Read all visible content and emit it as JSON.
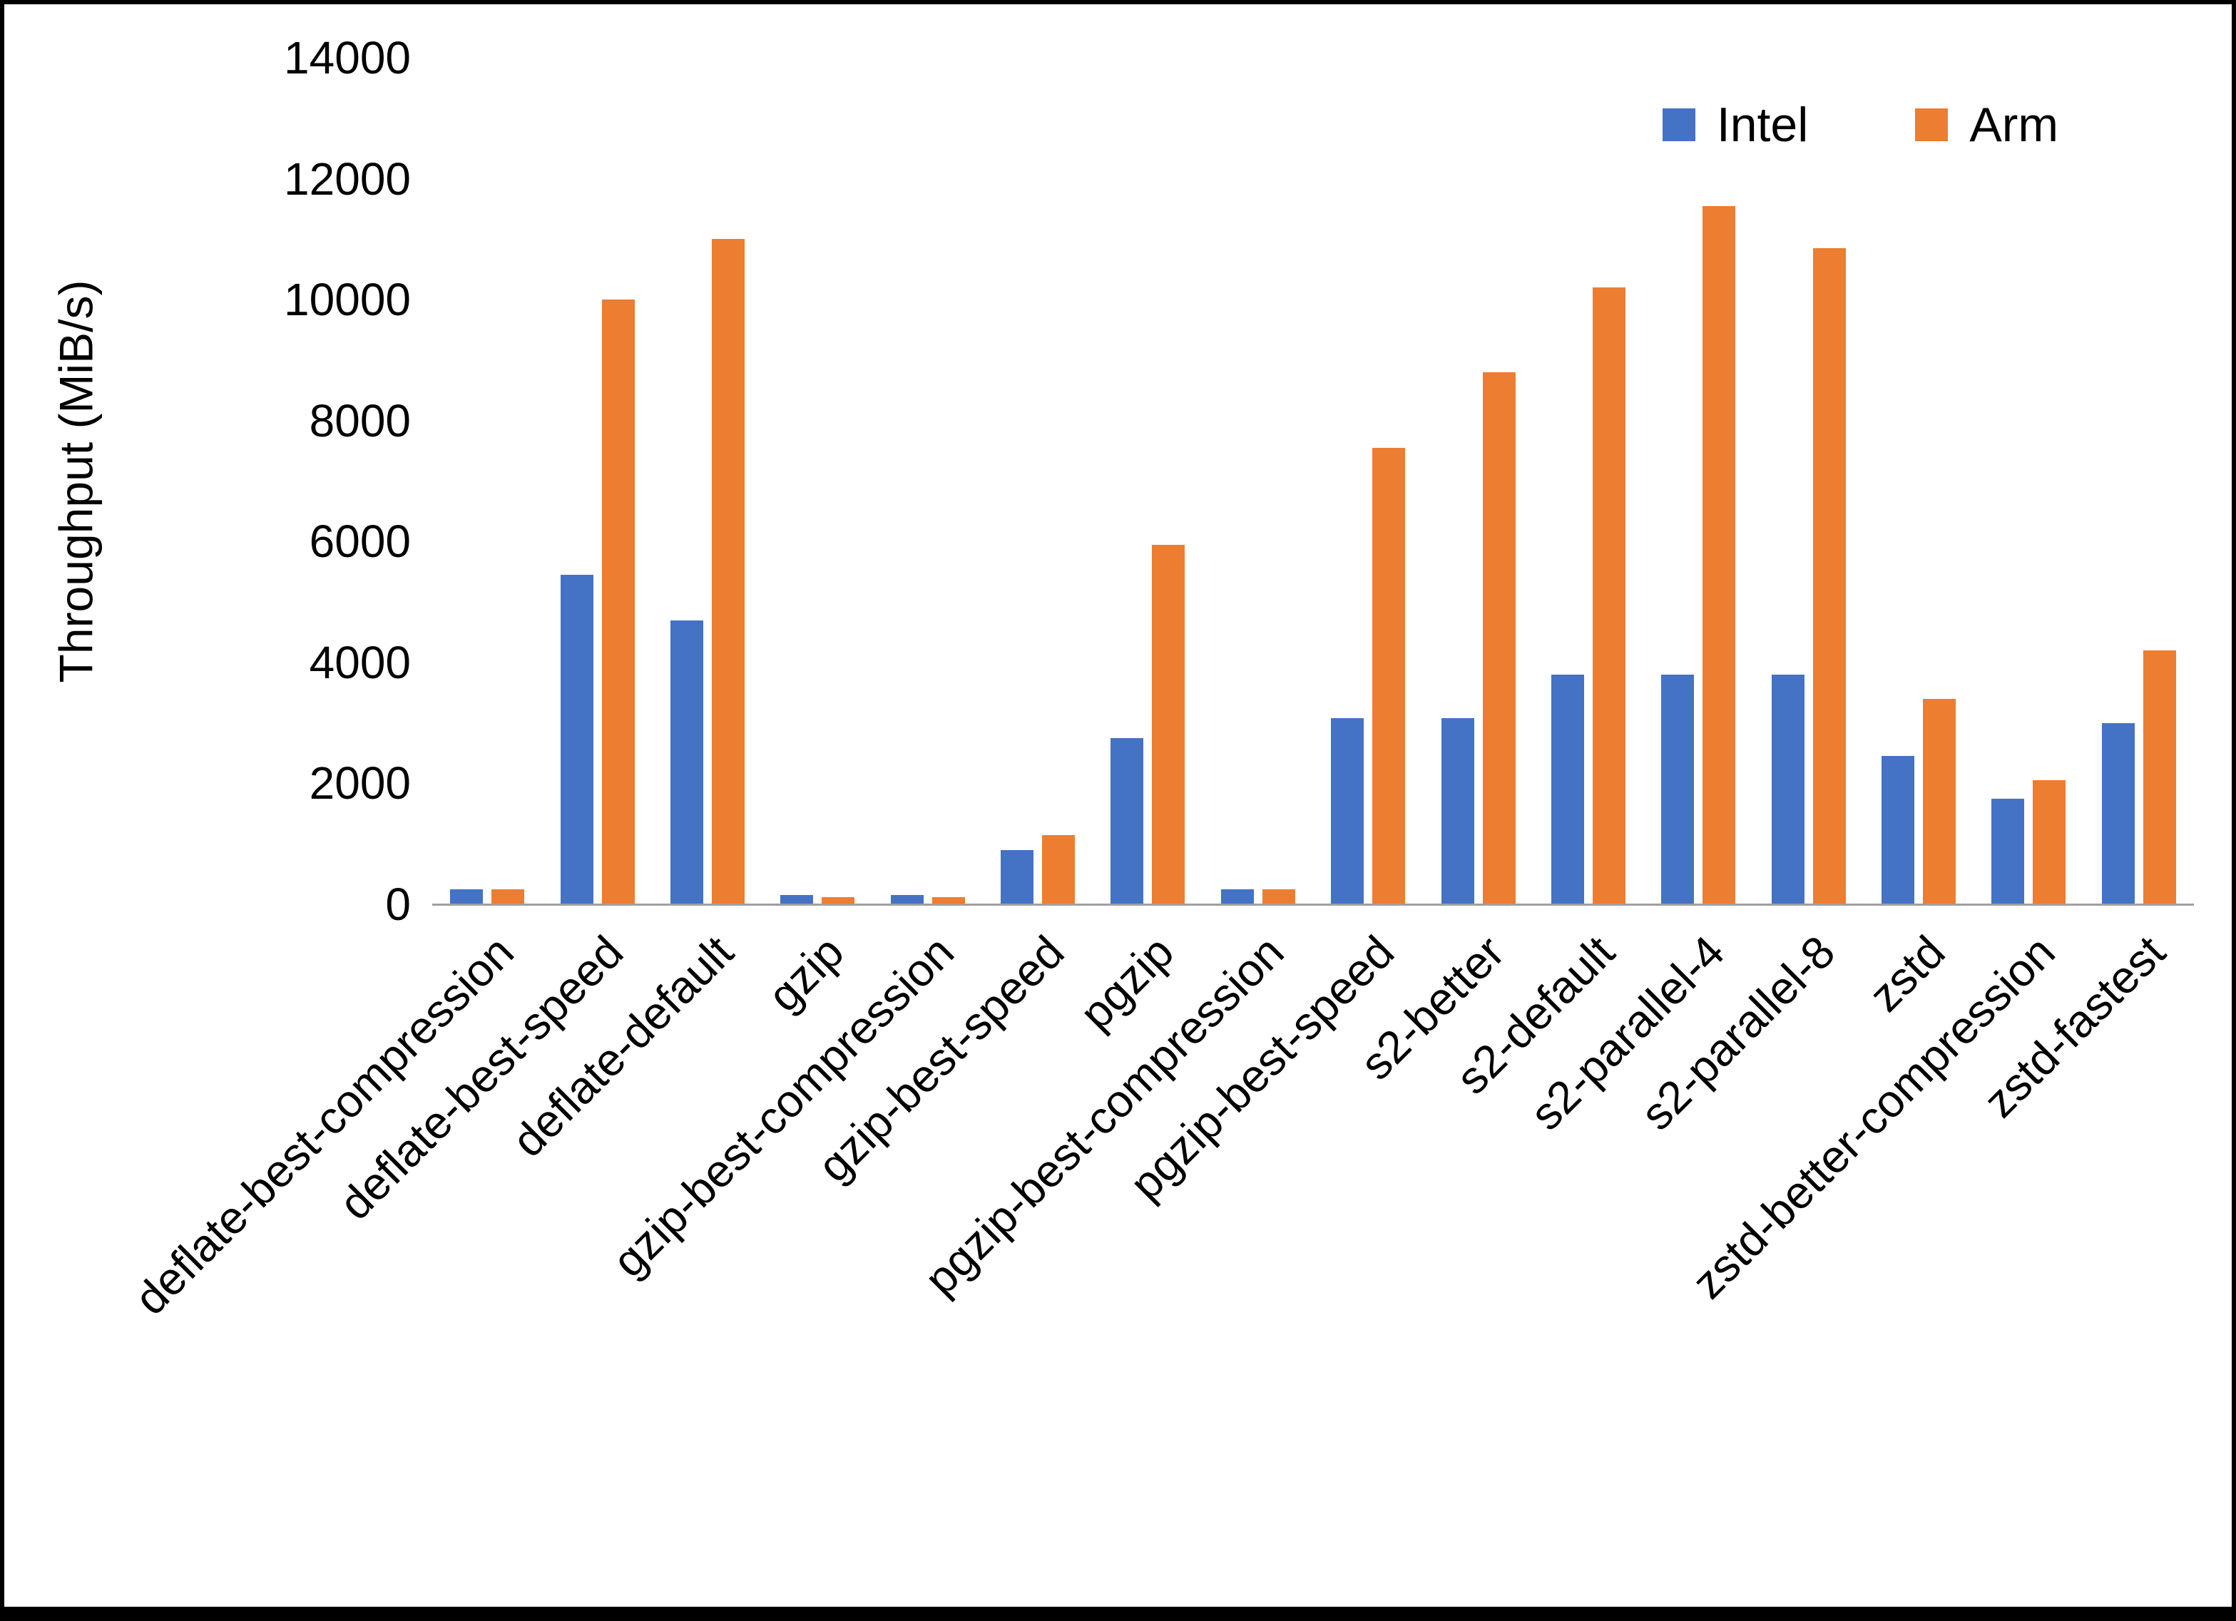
{
  "chart_data": {
    "type": "bar",
    "title": "",
    "xlabel": "",
    "ylabel": "Throughput (MiB/s)",
    "ylim": [
      0,
      14000
    ],
    "yticks": [
      0,
      2000,
      4000,
      6000,
      8000,
      10000,
      12000,
      14000
    ],
    "grid": false,
    "legend_position": "top-right",
    "axis_line_color": "#a0a0a0",
    "background_color": "#ffffff",
    "categories": [
      "deflate-best-compression",
      "deflate-best-speed",
      "deflate-default",
      "gzip",
      "gzip-best-compression",
      "gzip-best-speed",
      "pgzip",
      "pgzip-best-compression",
      "pgzip-best-speed",
      "s2-better",
      "s2-default",
      "s2-parallel-4",
      "s2-parallel-8",
      "zstd",
      "zstd-better-compression",
      "zstd-fastest"
    ],
    "series": [
      {
        "name": "Intel",
        "color": "#4472C4",
        "values": [
          250,
          5450,
          4700,
          150,
          150,
          900,
          2750,
          250,
          3080,
          3080,
          3800,
          3800,
          3800,
          2450,
          1750,
          3000
        ]
      },
      {
        "name": "Arm",
        "color": "#ED7D31",
        "values": [
          250,
          10000,
          11000,
          120,
          120,
          1150,
          5950,
          250,
          7550,
          8800,
          10200,
          11550,
          10850,
          3400,
          2050,
          4200
        ]
      }
    ]
  }
}
